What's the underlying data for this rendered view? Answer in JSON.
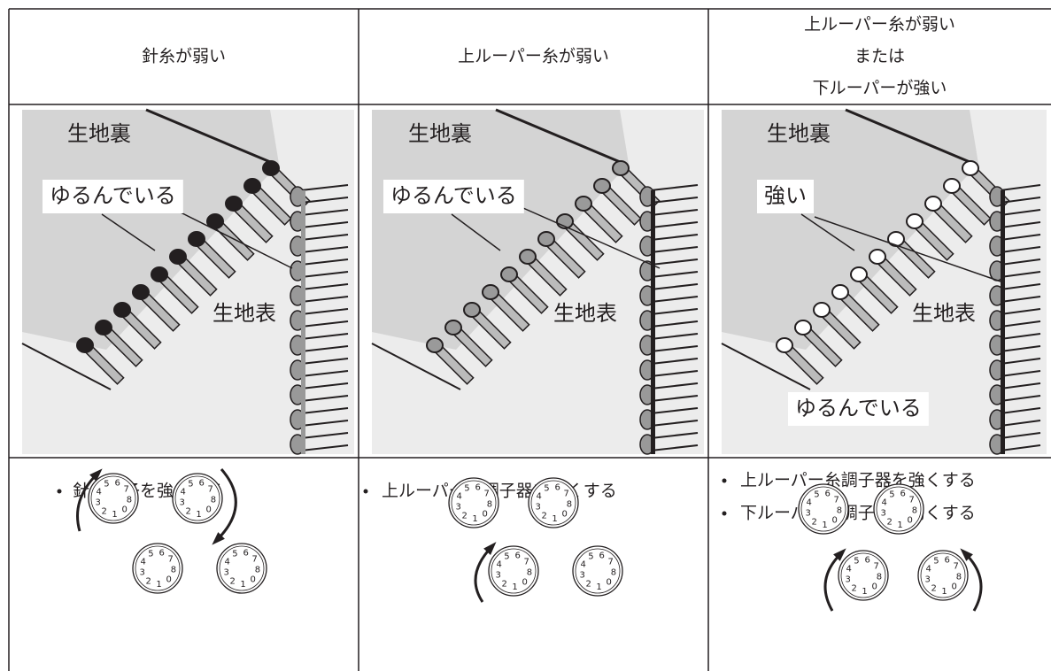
{
  "columns": [
    {
      "condition": [
        "針糸が弱い"
      ],
      "labels": [
        "生地裏",
        "ゆるんでいる",
        "生地表"
      ],
      "actions": [
        "針糸調子を強くする"
      ]
    },
    {
      "condition": [
        "上ルーパー糸が弱い"
      ],
      "labels": [
        "生地裏",
        "ゆるんでいる",
        "生地表"
      ],
      "actions": [
        "上ルーパー糸調子器を強くする"
      ]
    },
    {
      "condition": [
        "上ルーパー糸が弱い",
        "または",
        "下ルーパーが強い"
      ],
      "labels": [
        "生地裏",
        "強い",
        "生地表",
        "ゆるんでいる"
      ],
      "actions": [
        "上ルーパー糸調子器を強くする",
        "下ルーパー糸調子器を弱くする"
      ]
    }
  ],
  "dial_digits": [
    "0",
    "1",
    "2",
    "3",
    "4",
    "5",
    "6",
    "7",
    "8"
  ]
}
